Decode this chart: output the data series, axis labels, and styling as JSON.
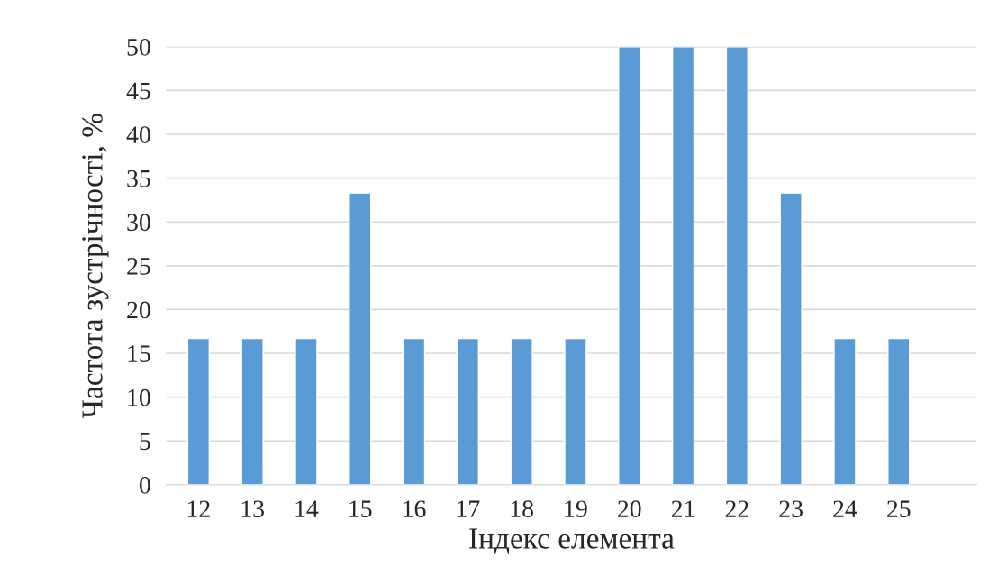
{
  "chart_data": {
    "type": "bar",
    "xlabel": "Індекс елемента",
    "ylabel": "Частота зустрічності, %",
    "categories": [
      "12",
      "13",
      "14",
      "15",
      "16",
      "17",
      "18",
      "19",
      "20",
      "21",
      "22",
      "23",
      "24",
      "25"
    ],
    "values": [
      16.7,
      16.7,
      16.7,
      33.3,
      16.7,
      16.7,
      16.7,
      16.7,
      50,
      50,
      50,
      33.3,
      16.7,
      16.7
    ],
    "color": "#5b9bd5",
    "ylim": [
      0,
      50
    ],
    "yticks": [
      0,
      5,
      10,
      15,
      20,
      25,
      30,
      35,
      40,
      45,
      50
    ],
    "grid": "y"
  }
}
